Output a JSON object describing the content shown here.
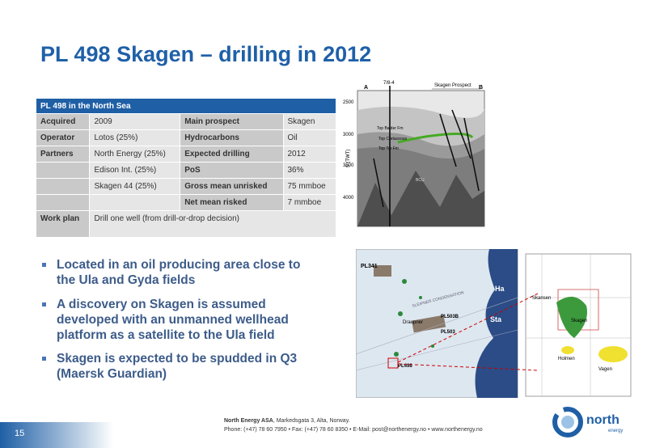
{
  "header": {
    "title": "PL 498 Skagen – drilling in 2012"
  },
  "table": {
    "caption": "PL 498 in the North Sea",
    "rows": [
      [
        "Acquired",
        "2009",
        "Main prospect",
        "Skagen"
      ],
      [
        "Operator",
        "Lotos (25%)",
        "Hydrocarbons",
        "Oil"
      ],
      [
        "Partners",
        "North Energy (25%)",
        "Expected drilling",
        "2012"
      ],
      [
        null,
        "Edison Int. (25%)",
        "PoS",
        "36%"
      ],
      [
        null,
        "Skagen 44 (25%)",
        "Gross mean unrisked",
        "75 mmboe"
      ],
      [
        null,
        null,
        "Net mean risked",
        "7 mmboe"
      ],
      [
        "Work plan",
        "Drill one well (from drill-or-drop decision)"
      ]
    ]
  },
  "bullets": [
    [
      "Located in an oil producing area close to",
      "the Ula and Gyda fields"
    ],
    [
      "A discovery on Skagen is assumed",
      "developed with an unmanned wellhead",
      "platform as a satellite to the Ula field"
    ],
    [
      "Skagen is expected to be spudded in Q3",
      "(Maersk Guardian)"
    ]
  ],
  "seismic": {
    "left_end": "A",
    "right_end": "B",
    "well": "7/8-4",
    "prospect": "Skagen Prospect",
    "horizons": [
      "Top Balder Fm",
      "Top Cretaceous",
      "Top Tor Fm",
      "BCU"
    ],
    "depth_ticks": [
      "2500",
      "3000",
      "3500",
      "4000"
    ],
    "axis_label": "S (TWT)"
  },
  "map": {
    "labels": [
      "PL341",
      "Draupner",
      "SLEIPNER CONDENSATION",
      "PL503B",
      "PL503",
      "PL498",
      "Ha",
      "Sta"
    ],
    "inset_labels": [
      "Skansen",
      "Skagen",
      "Holmen",
      "Vagen"
    ]
  },
  "footer": {
    "page": "15",
    "company": "North Energy ASA",
    "address": ", Markedsgata 3, Alta, Norway.",
    "contact": "Phone: (+47) 78 60 7950 • Fax: (+47) 78 60 8350 • E-Mail: post@northenergy.no • www.northenergy.no",
    "logo": "north",
    "logo_sub": "energy"
  }
}
